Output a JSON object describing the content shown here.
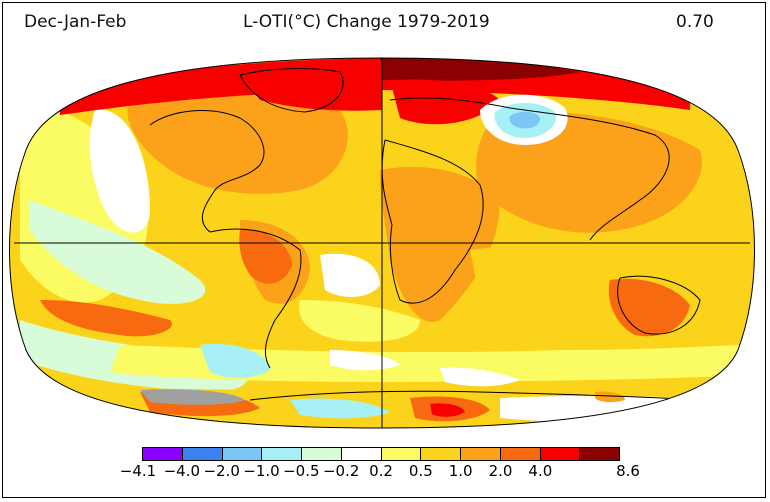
{
  "header": {
    "season": "Dec-Jan-Feb",
    "title": "L-OTI(°C) Change 1979-2019",
    "global_mean": "0.70"
  },
  "map": {
    "projection": "Robinson",
    "variable": "Land-Ocean Temperature Index change"
  },
  "legend": {
    "colors": [
      "#8a00ff",
      "#3c82f0",
      "#7cc6f5",
      "#a7f0f5",
      "#d8fbd8",
      "#ffffff",
      "#fbfb64",
      "#fbd31a",
      "#fba21a",
      "#f86a0f",
      "#f80000",
      "#8b0000"
    ],
    "labels": [
      "−4.1",
      "−4.0",
      "−2.0",
      "−1.0",
      "−0.5",
      "−0.2",
      "0.2",
      "0.5",
      "1.0",
      "2.0",
      "4.0",
      "8.6"
    ]
  }
}
